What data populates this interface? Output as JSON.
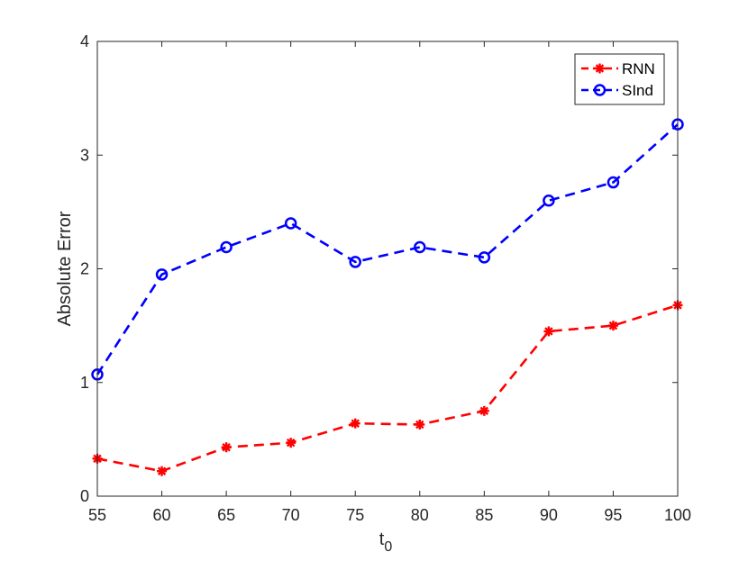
{
  "chart_data": {
    "type": "line",
    "x": [
      55,
      60,
      65,
      70,
      75,
      80,
      85,
      90,
      95,
      100
    ],
    "xlabel": "t",
    "xlabel_subscript": "0",
    "ylabel": "Absolute Error",
    "xlim": [
      55,
      100
    ],
    "ylim": [
      0,
      4
    ],
    "xticks": [
      55,
      60,
      65,
      70,
      75,
      80,
      85,
      90,
      95,
      100
    ],
    "yticks": [
      0,
      1,
      2,
      3,
      4
    ],
    "grid": false,
    "legend_position": "top-right",
    "series": [
      {
        "name": "RNN",
        "color": "#ff0000",
        "marker": "asterisk",
        "line_style": "dashed",
        "values": [
          0.33,
          0.22,
          0.43,
          0.47,
          0.64,
          0.63,
          0.75,
          1.45,
          1.5,
          1.68
        ]
      },
      {
        "name": "SInd",
        "color": "#0000ff",
        "marker": "circle",
        "line_style": "dashed",
        "values": [
          1.07,
          1.95,
          2.19,
          2.4,
          2.06,
          2.19,
          2.1,
          2.6,
          2.76,
          3.27
        ]
      }
    ]
  }
}
